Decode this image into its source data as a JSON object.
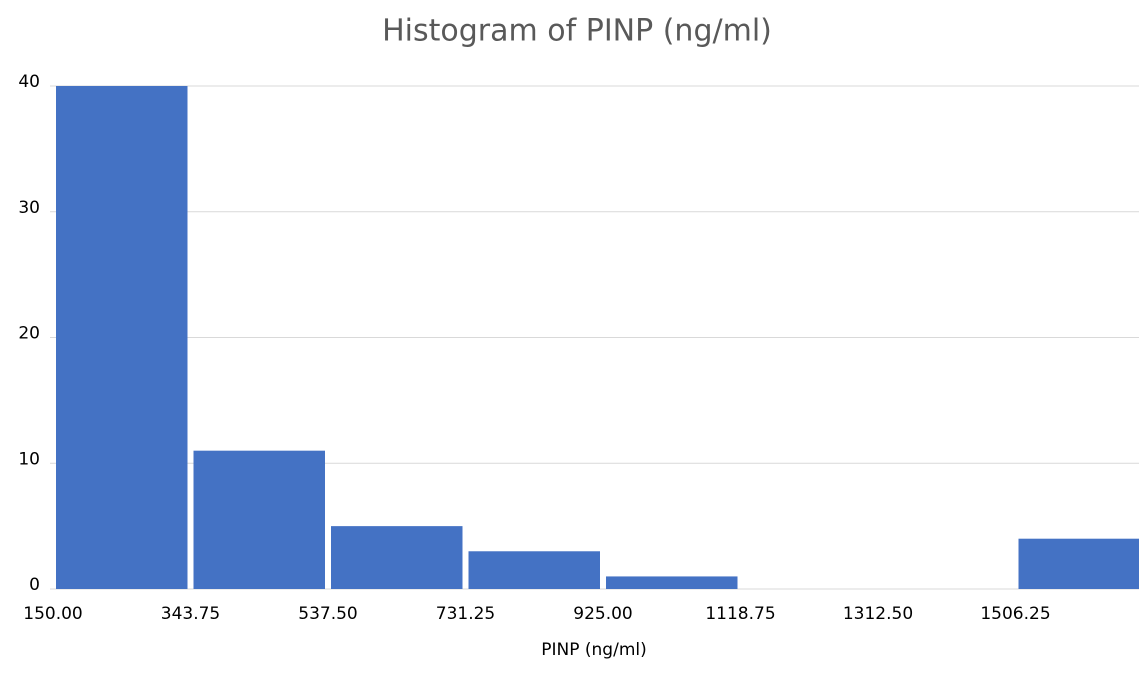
{
  "chart_data": {
    "type": "histogram",
    "title": "Histogram of PINP (ng/ml)",
    "x_label": "PINP (ng/ml)",
    "bins": [
      150,
      343.75,
      537.5,
      731.25,
      925,
      1118.75,
      1312.5,
      1506.25,
      1700
    ],
    "values": [
      40,
      11,
      5,
      3,
      1,
      0,
      0,
      4
    ],
    "color": "#4472c4",
    "xlim": [
      150,
      1700
    ],
    "xticks": [
      {
        "value": 150,
        "label": "150.00"
      },
      {
        "value": 343.75,
        "label": "343.75"
      },
      {
        "value": 537.5,
        "label": "537.50"
      },
      {
        "value": 731.25,
        "label": "731.25"
      },
      {
        "value": 925,
        "label": "925.00"
      },
      {
        "value": 1118.75,
        "label": "1118.75"
      },
      {
        "value": 1312.5,
        "label": "1312.50"
      },
      {
        "value": 1506.25,
        "label": "1506.25"
      }
    ],
    "ylim": [
      0,
      40
    ],
    "yticks": [
      0,
      10,
      20,
      30,
      40
    ],
    "grid": true
  }
}
